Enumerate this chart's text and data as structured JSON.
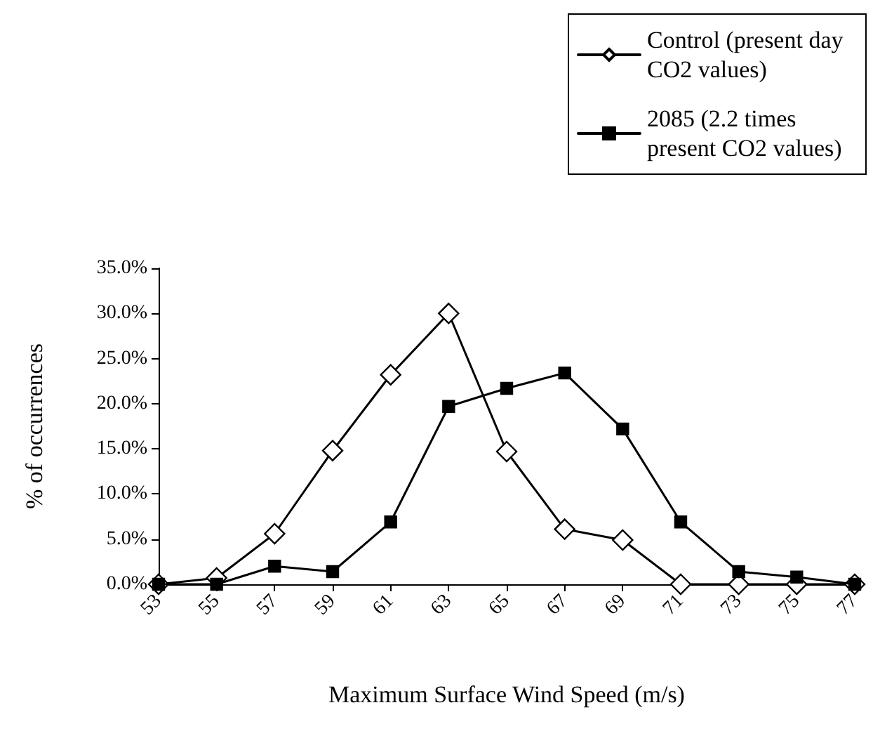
{
  "chart_data": {
    "type": "line",
    "xlabel": "Maximum Surface Wind Speed (m/s)",
    "ylabel": "% of occurrences",
    "categories": [
      "53",
      "55",
      "57",
      "59",
      "61",
      "63",
      "65",
      "67",
      "69",
      "71",
      "73",
      "75",
      "77"
    ],
    "series": [
      {
        "name": "Control (present day CO2 values)",
        "color": "#000000",
        "marker": "diamond",
        "values": [
          0,
          0.7,
          5.6,
          14.8,
          23.2,
          30,
          14.7,
          6.1,
          4.9,
          0,
          0,
          0,
          0
        ]
      },
      {
        "name": "2085 (2.2 times present CO2 values)",
        "color": "#000000",
        "marker": "square",
        "values": [
          0,
          0,
          2.0,
          1.4,
          6.9,
          19.7,
          21.7,
          23.4,
          17.2,
          6.9,
          1.4,
          0.8,
          0
        ]
      }
    ],
    "ylim": [
      0,
      35
    ],
    "yticks": [
      {
        "value": 0,
        "label": "0.0%"
      },
      {
        "value": 5,
        "label": "5.0%"
      },
      {
        "value": 10,
        "label": "10.0%"
      },
      {
        "value": 15,
        "label": "15.0%"
      },
      {
        "value": 20,
        "label": "20.0%"
      },
      {
        "value": 25,
        "label": "25.0%"
      },
      {
        "value": 30,
        "label": "30.0%"
      },
      {
        "value": 35,
        "label": "35.0%"
      }
    ],
    "grid": false,
    "legend": "top right",
    "line_style": "solid"
  }
}
